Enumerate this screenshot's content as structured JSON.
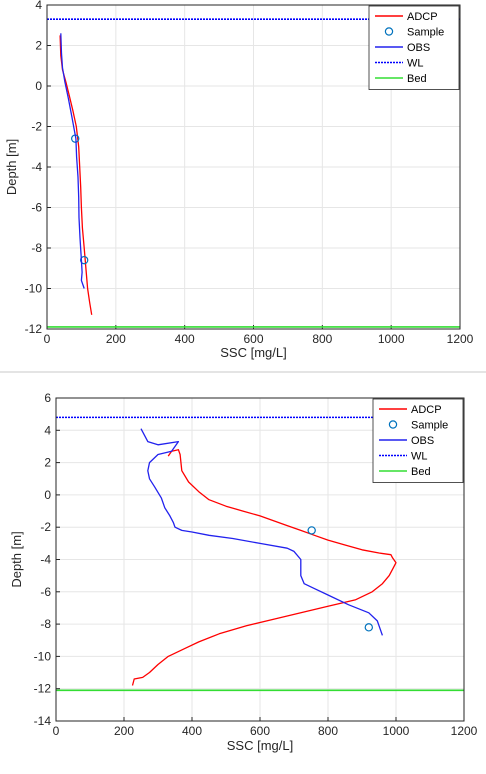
{
  "chart_data": [
    {
      "type": "line",
      "title": "",
      "xlabel": "SSC [mg/L]",
      "ylabel": "Depth [m]",
      "xlim": [
        0,
        1200
      ],
      "ylim": [
        -12,
        4
      ],
      "xticks": [
        "0",
        "200",
        "400",
        "600",
        "800",
        "1000",
        "1200"
      ],
      "yticks": [
        "4",
        "2",
        "0",
        "-2",
        "-4",
        "-6",
        "-8",
        "-10",
        "-12"
      ],
      "grid": true,
      "legend_position": "top-right",
      "legend": [
        "ADCP",
        "Sample",
        "OBS",
        "WL",
        "Bed"
      ],
      "series": [
        {
          "name": "ADCP",
          "kind": "line",
          "color": "#ff0000",
          "points": [
            [
              38,
              2.5
            ],
            [
              40,
              1.5
            ],
            [
              45,
              0.8
            ],
            [
              55,
              0.2
            ],
            [
              65,
              -0.5
            ],
            [
              75,
              -1.2
            ],
            [
              85,
              -2.0
            ],
            [
              92,
              -3.0
            ],
            [
              95,
              -4.0
            ],
            [
              98,
              -5.0
            ],
            [
              100,
              -6.0
            ],
            [
              103,
              -7.0
            ],
            [
              108,
              -8.0
            ],
            [
              113,
              -9.0
            ],
            [
              118,
              -10.0
            ],
            [
              124,
              -10.7
            ],
            [
              130,
              -11.3
            ]
          ]
        },
        {
          "name": "Sample",
          "kind": "marker",
          "color": "#0072bd",
          "points": [
            [
              82,
              -2.6
            ],
            [
              108,
              -8.6
            ]
          ]
        },
        {
          "name": "OBS",
          "kind": "line",
          "color": "#2222ee",
          "points": [
            [
              40,
              2.6
            ],
            [
              42,
              1.6
            ],
            [
              45,
              0.9
            ],
            [
              52,
              0.2
            ],
            [
              62,
              -0.6
            ],
            [
              72,
              -1.5
            ],
            [
              84,
              -2.6
            ],
            [
              86,
              -3.5
            ],
            [
              90,
              -4.5
            ],
            [
              92,
              -5.5
            ],
            [
              93,
              -6.5
            ],
            [
              96,
              -7.5
            ],
            [
              100,
              -8.6
            ],
            [
              102,
              -9.2
            ],
            [
              100,
              -9.6
            ],
            [
              108,
              -10.0
            ]
          ]
        },
        {
          "name": "WL",
          "kind": "hline",
          "color": "#0000ff",
          "dash": true,
          "y": 3.3
        },
        {
          "name": "Bed",
          "kind": "hline",
          "color": "#33dd33",
          "y": -11.9
        }
      ]
    },
    {
      "type": "line",
      "title": "",
      "xlabel": "SSC [mg/L]",
      "ylabel": "Depth [m]",
      "xlim": [
        0,
        1200
      ],
      "ylim": [
        -14,
        6
      ],
      "xticks": [
        "0",
        "200",
        "400",
        "600",
        "800",
        "1000",
        "1200"
      ],
      "yticks": [
        "6",
        "4",
        "2",
        "0",
        "-2",
        "-4",
        "-6",
        "-8",
        "-10",
        "-12",
        "-14"
      ],
      "grid": true,
      "legend_position": "top-right",
      "legend": [
        "ADCP",
        "Sample",
        "OBS",
        "WL",
        "Bed"
      ],
      "series": [
        {
          "name": "ADCP",
          "kind": "line",
          "color": "#ff0000",
          "points": [
            [
              330,
              2.4
            ],
            [
              340,
              2.7
            ],
            [
              360,
              2.8
            ],
            [
              365,
              2.5
            ],
            [
              370,
              1.5
            ],
            [
              390,
              0.8
            ],
            [
              420,
              0.2
            ],
            [
              450,
              -0.3
            ],
            [
              500,
              -0.7
            ],
            [
              550,
              -1.0
            ],
            [
              600,
              -1.3
            ],
            [
              640,
              -1.6
            ],
            [
              680,
              -1.9
            ],
            [
              720,
              -2.2
            ],
            [
              760,
              -2.5
            ],
            [
              800,
              -2.8
            ],
            [
              850,
              -3.1
            ],
            [
              900,
              -3.4
            ],
            [
              950,
              -3.6
            ],
            [
              985,
              -3.7
            ],
            [
              990,
              -3.9
            ],
            [
              1000,
              -4.2
            ],
            [
              990,
              -4.6
            ],
            [
              980,
              -5.0
            ],
            [
              960,
              -5.5
            ],
            [
              930,
              -6.0
            ],
            [
              880,
              -6.5
            ],
            [
              800,
              -6.9
            ],
            [
              720,
              -7.3
            ],
            [
              640,
              -7.7
            ],
            [
              560,
              -8.1
            ],
            [
              480,
              -8.6
            ],
            [
              420,
              -9.1
            ],
            [
              380,
              -9.5
            ],
            [
              330,
              -10.0
            ],
            [
              300,
              -10.5
            ],
            [
              275,
              -11.0
            ],
            [
              255,
              -11.3
            ],
            [
              230,
              -11.4
            ],
            [
              225,
              -11.8
            ]
          ]
        },
        {
          "name": "Sample",
          "kind": "marker",
          "color": "#0072bd",
          "points": [
            [
              752,
              -2.2
            ],
            [
              920,
              -8.2
            ]
          ]
        },
        {
          "name": "OBS",
          "kind": "line",
          "color": "#2222ee",
          "points": [
            [
              250,
              4.1
            ],
            [
              270,
              3.3
            ],
            [
              300,
              3.1
            ],
            [
              360,
              3.3
            ],
            [
              340,
              2.7
            ],
            [
              300,
              2.5
            ],
            [
              275,
              2.0
            ],
            [
              270,
              1.5
            ],
            [
              275,
              1.0
            ],
            [
              290,
              0.5
            ],
            [
              310,
              -0.2
            ],
            [
              320,
              -0.8
            ],
            [
              335,
              -1.3
            ],
            [
              345,
              -1.7
            ],
            [
              350,
              -2.0
            ],
            [
              370,
              -2.2
            ],
            [
              400,
              -2.3
            ],
            [
              450,
              -2.5
            ],
            [
              520,
              -2.7
            ],
            [
              600,
              -3.0
            ],
            [
              680,
              -3.3
            ],
            [
              700,
              -3.5
            ],
            [
              720,
              -4.0
            ],
            [
              720,
              -5.0
            ],
            [
              730,
              -5.5
            ],
            [
              760,
              -5.8
            ],
            [
              800,
              -6.2
            ],
            [
              860,
              -6.8
            ],
            [
              920,
              -7.3
            ],
            [
              945,
              -7.8
            ],
            [
              950,
              -8.1
            ],
            [
              960,
              -8.7
            ]
          ]
        },
        {
          "name": "WL",
          "kind": "hline",
          "color": "#0000ff",
          "dash": true,
          "y": 4.8
        },
        {
          "name": "Bed",
          "kind": "hline",
          "color": "#33dd33",
          "y": -12.1
        }
      ]
    }
  ]
}
